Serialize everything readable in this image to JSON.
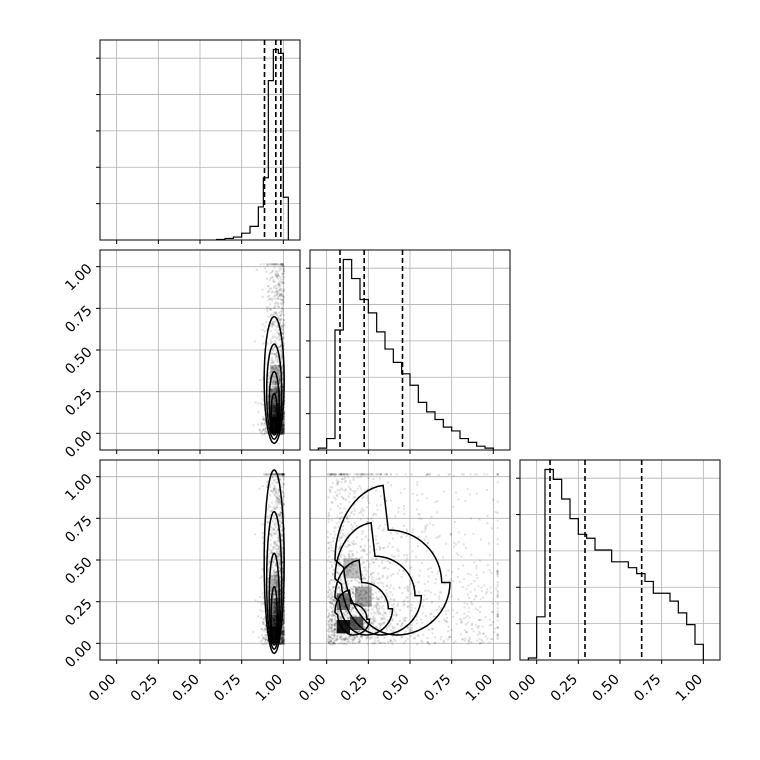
{
  "chart_data": {
    "type": "corner",
    "description_of_panels": "3-parameter corner plot: 1D histograms on the diagonal, 2D density/contours below",
    "tick_labels": [
      "0.00",
      "0.25",
      "0.50",
      "0.75",
      "1.00"
    ],
    "axis_range": [
      -0.1,
      1.1
    ],
    "grid": true,
    "histograms": [
      {
        "param_index": 0,
        "bin_edges": [
          0.6,
          0.65,
          0.7,
          0.75,
          0.8,
          0.85,
          0.88,
          0.91,
          0.94,
          0.97,
          1.0,
          1.03
        ],
        "counts": [
          0.3,
          0.8,
          1.5,
          3.5,
          7,
          17,
          32,
          82,
          98,
          96,
          22
        ],
        "quantiles": [
          0.887,
          0.955,
          0.985
        ]
      },
      {
        "param_index": 1,
        "bin_edges": [
          -0.05,
          0.0,
          0.05,
          0.1,
          0.15,
          0.2,
          0.25,
          0.3,
          0.35,
          0.4,
          0.45,
          0.5,
          0.55,
          0.6,
          0.65,
          0.7,
          0.75,
          0.8,
          0.85,
          0.9,
          0.95,
          1.0
        ],
        "counts": [
          1,
          6,
          63,
          100,
          90,
          79,
          72,
          62,
          53,
          46,
          40,
          34,
          25,
          20,
          16,
          12,
          10,
          6,
          4,
          2,
          1
        ],
        "quantiles": [
          0.08,
          0.225,
          0.455
        ]
      },
      {
        "param_index": 2,
        "bin_edges": [
          -0.05,
          0.0,
          0.05,
          0.1,
          0.15,
          0.2,
          0.25,
          0.3,
          0.35,
          0.4,
          0.45,
          0.5,
          0.55,
          0.6,
          0.65,
          0.7,
          0.75,
          0.8,
          0.85,
          0.9,
          0.95,
          1.0
        ],
        "counts": [
          1,
          22,
          97,
          92,
          82,
          72,
          64,
          62,
          56,
          56,
          50,
          50,
          47,
          44,
          40,
          34,
          34,
          30,
          24,
          18,
          8
        ],
        "quantiles": [
          0.08,
          0.29,
          0.63
        ]
      }
    ],
    "pairs": [
      {
        "x_param": 0,
        "y_param": 1,
        "density_center": [
          0.95,
          0.15
        ],
        "spread": [
          0.04,
          0.16
        ]
      },
      {
        "x_param": 0,
        "y_param": 2,
        "density_center": [
          0.95,
          0.15
        ],
        "spread": [
          0.04,
          0.22
        ]
      },
      {
        "x_param": 1,
        "y_param": 2,
        "density_center": [
          0.1,
          0.1
        ],
        "spread": [
          0.18,
          0.25
        ]
      }
    ]
  }
}
